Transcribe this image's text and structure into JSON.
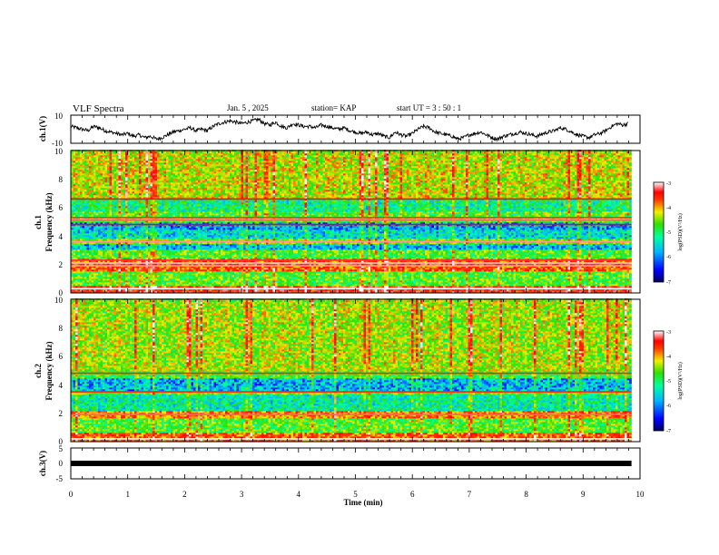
{
  "header": {
    "title": "VLF Spectra",
    "date": "Jan. 5 , 2025",
    "station": "station= KAP",
    "start_ut": "start UT = 3 : 50 : 1"
  },
  "chart_data": {
    "type": "heatmap",
    "title": "VLF Spectra",
    "x": {
      "label": "Time (min)",
      "range": [
        0,
        10
      ],
      "ticks": [
        "0",
        "1",
        "2",
        "3",
        "4",
        "5",
        "6",
        "7",
        "8",
        "9",
        "10"
      ],
      "data_end": 9.85
    },
    "panels": [
      {
        "name": "ch.1 waveform",
        "kind": "line",
        "ylabel": "ch.1(V)",
        "ylim": [
          -10,
          10
        ],
        "yticks": [
          "10",
          "-10"
        ],
        "series_t": [
          0,
          0.1,
          0.2,
          0.3,
          0.4,
          0.5,
          0.6,
          0.7,
          0.8,
          0.9,
          1,
          1.1,
          1.2,
          1.3,
          1.4,
          1.5,
          1.6,
          1.7,
          1.8,
          1.9,
          2,
          2.1,
          2.2,
          2.3,
          2.4,
          2.5,
          2.6,
          2.7,
          2.8,
          2.9,
          3,
          3.1,
          3.2,
          3.3,
          3.4,
          3.5,
          3.6,
          3.7,
          3.8,
          3.9,
          4,
          4.1,
          4.2,
          4.3,
          4.4,
          4.5,
          4.6,
          4.7,
          4.8,
          4.9,
          5,
          5.1,
          5.2,
          5.3,
          5.4,
          5.5,
          5.6,
          5.7,
          5.8,
          5.9,
          6,
          6.1,
          6.2,
          6.3,
          6.4,
          6.5,
          6.6,
          6.7,
          6.8,
          6.9,
          7,
          7.1,
          7.2,
          7.3,
          7.4,
          7.5,
          7.6,
          7.7,
          7.8,
          7.9,
          8,
          8.1,
          8.2,
          8.3,
          8.4,
          8.5,
          8.6,
          8.7,
          8.8,
          8.9,
          9,
          9.1,
          9.2,
          9.3,
          9.4,
          9.5,
          9.6,
          9.7,
          9.8
        ],
        "series_v": [
          2,
          1,
          0,
          -1,
          2,
          1,
          -1,
          -2,
          -3,
          -4,
          -3,
          -5,
          -4,
          -6,
          -5,
          -7,
          -6,
          -4,
          -2,
          -1,
          0,
          1,
          -1,
          0,
          -1,
          2,
          4,
          5,
          6,
          5,
          4,
          5,
          6,
          7,
          4,
          3,
          5,
          2,
          1,
          4,
          3,
          2,
          2,
          1,
          3,
          2,
          1,
          0,
          1,
          -1,
          -2,
          -3,
          -2,
          -4,
          -3,
          -5,
          -6,
          -2,
          -4,
          -5,
          -3,
          0,
          2,
          1,
          -2,
          -3,
          -4,
          -5,
          -7,
          -6,
          -4,
          -3,
          -2,
          -4,
          -6,
          -7,
          -5,
          -4,
          -3,
          -2,
          -3,
          -4,
          -5,
          -3,
          -2,
          -1,
          1,
          0,
          -2,
          -4,
          -5,
          -6,
          -4,
          -3,
          -1,
          2,
          4,
          3,
          4
        ]
      },
      {
        "name": "ch.1 spectrogram",
        "kind": "heatmap",
        "ylabel": "ch.1\nFrequency (kHz)",
        "ylim": [
          0,
          10
        ],
        "yticks": [
          "0",
          "2",
          "4",
          "6",
          "8",
          "10"
        ],
        "bands_kHz": [
          {
            "f0": 0.0,
            "f1": 0.5,
            "level": -3.7
          },
          {
            "f0": 0.5,
            "f1": 1.5,
            "level": -5.0
          },
          {
            "f0": 1.5,
            "f1": 2.4,
            "level": -4.0
          },
          {
            "f0": 2.4,
            "f1": 3.0,
            "level": -5.0
          },
          {
            "f0": 3.0,
            "f1": 3.5,
            "level": -5.9
          },
          {
            "f0": 3.5,
            "f1": 3.8,
            "level": -4.8
          },
          {
            "f0": 3.8,
            "f1": 4.5,
            "level": -5.7
          },
          {
            "f0": 4.5,
            "f1": 5.0,
            "level": -6.0
          },
          {
            "f0": 5.0,
            "f1": 5.7,
            "level": -5.0
          },
          {
            "f0": 5.7,
            "f1": 6.6,
            "level": -5.4
          },
          {
            "f0": 6.6,
            "f1": 10.0,
            "level": -4.6
          }
        ],
        "lines_kHz": [
          {
            "f": 0.3,
            "level": -3.0
          },
          {
            "f": 1.9,
            "level": -3.2
          },
          {
            "f": 2.1,
            "level": -3.1
          },
          {
            "f": 2.3,
            "level": -3.4
          },
          {
            "f": 3.6,
            "level": -3.2
          },
          {
            "f": 4.8,
            "level": -3.5
          },
          {
            "f": 5.1,
            "level": -3.3
          },
          {
            "f": 5.3,
            "level": -3.4
          },
          {
            "f": 6.6,
            "level": -3.6
          }
        ]
      },
      {
        "name": "ch.2 spectrogram",
        "kind": "heatmap",
        "ylabel": "ch.2\nFrequency (kHz)",
        "ylim": [
          0,
          10
        ],
        "yticks": [
          "0",
          "2",
          "4",
          "6",
          "8",
          "10"
        ],
        "bands_kHz": [
          {
            "f0": 0.0,
            "f1": 0.6,
            "level": -4.0
          },
          {
            "f0": 0.6,
            "f1": 1.6,
            "level": -5.0
          },
          {
            "f0": 1.6,
            "f1": 2.2,
            "level": -4.2
          },
          {
            "f0": 2.2,
            "f1": 3.3,
            "level": -5.5
          },
          {
            "f0": 3.3,
            "f1": 3.6,
            "level": -5.0
          },
          {
            "f0": 3.6,
            "f1": 4.5,
            "level": -5.9
          },
          {
            "f0": 4.5,
            "f1": 5.0,
            "level": -5.1
          },
          {
            "f0": 5.0,
            "f1": 10.0,
            "level": -4.7
          }
        ],
        "lines_kHz": [
          {
            "f": 0.2,
            "level": -3.0
          },
          {
            "f": 1.9,
            "level": -3.3
          },
          {
            "f": 3.5,
            "level": -3.8
          },
          {
            "f": 4.8,
            "level": -3.8
          }
        ]
      },
      {
        "name": "ch.3 waveform",
        "kind": "line",
        "ylabel": "ch.3(V)",
        "ylim": [
          -5,
          5
        ],
        "yticks": [
          "5",
          "0",
          "-5"
        ],
        "constant_value": 0
      }
    ],
    "colorbar": {
      "label": "log(PSD)(V²/Hz)",
      "range": [
        -7,
        -3
      ],
      "ticks": [
        "-3",
        "-4",
        "-5",
        "-6",
        "-7"
      ]
    }
  },
  "colors": {
    "ink": "#000000",
    "colormap": [
      "#000060",
      "#0000ff",
      "#00b4ff",
      "#00ffa0",
      "#30e000",
      "#f0f000",
      "#ff4000",
      "#ff0000",
      "#ffffff"
    ]
  }
}
